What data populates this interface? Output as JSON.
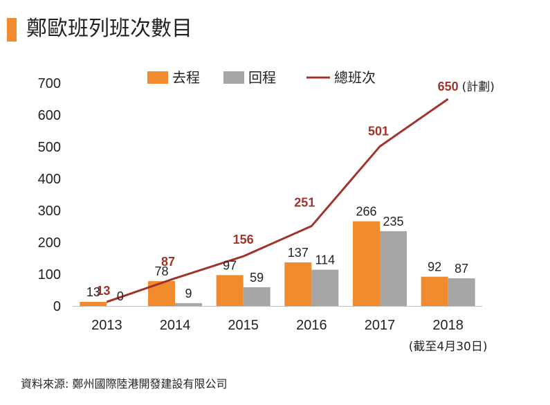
{
  "header": {
    "title": "鄭歐班列班次數目"
  },
  "source": "資料來源: 鄭州國際陸港開發建設有限公司",
  "chart_data": {
    "type": "bar",
    "categories": [
      "2013",
      "2014",
      "2015",
      "2016",
      "2017",
      "2018"
    ],
    "series": [
      {
        "name": "去程",
        "type": "bar",
        "color": "#f28a2e",
        "values": [
          13,
          78,
          97,
          137,
          266,
          92
        ]
      },
      {
        "name": "回程",
        "type": "bar",
        "color": "#a6a6a6",
        "values": [
          0,
          9,
          59,
          114,
          235,
          87
        ]
      },
      {
        "name": "總班次",
        "type": "line",
        "color": "#a0342c",
        "values": [
          13,
          87,
          156,
          251,
          501,
          650
        ]
      }
    ],
    "ylim": [
      0,
      700
    ],
    "yticks": [
      0,
      100,
      200,
      300,
      400,
      500,
      600,
      700
    ],
    "legend": "top",
    "planned_note": "(計劃)",
    "category_note": "(截至4月30日)"
  }
}
